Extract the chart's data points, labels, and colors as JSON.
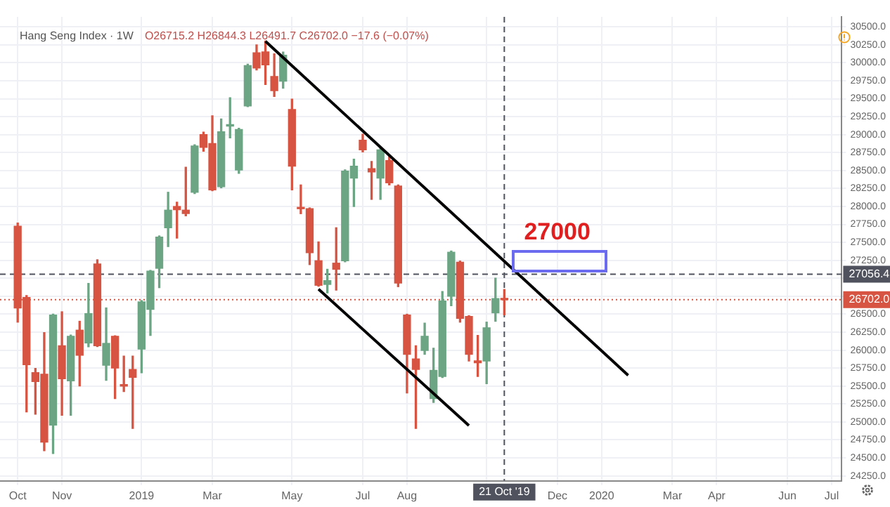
{
  "chart_data": {
    "type": "candlestick",
    "title": "Hang Seng Index · 1W",
    "subtitle": "O26715.2 H26844.3 L26491.7 C26702.0 −17.6 (−0.07%)",
    "series": [
      {
        "x": [
          "2018-10-01",
          "2018-10-08",
          "2018-10-15",
          "2018-10-22",
          "2018-10-29",
          "2018-11-05",
          "2018-11-12",
          "2018-11-19",
          "2018-11-26",
          "2018-12-03",
          "2018-12-10",
          "2018-12-17",
          "2018-12-24",
          "2018-12-31",
          "2019-01-07",
          "2019-01-14",
          "2019-01-21",
          "2019-01-28",
          "2019-02-04",
          "2019-02-11",
          "2019-02-18",
          "2019-02-25",
          "2019-03-04",
          "2019-03-11",
          "2019-03-18",
          "2019-03-25",
          "2019-04-01",
          "2019-04-08",
          "2019-04-15",
          "2019-04-22",
          "2019-04-29",
          "2019-05-06",
          "2019-05-13",
          "2019-05-20",
          "2019-05-27",
          "2019-06-03",
          "2019-06-10",
          "2019-06-17",
          "2019-06-24",
          "2019-07-01",
          "2019-07-08",
          "2019-07-15",
          "2019-07-22",
          "2019-07-29",
          "2019-08-05",
          "2019-08-12",
          "2019-08-19",
          "2019-08-26",
          "2019-09-02",
          "2019-09-09",
          "2019-09-16",
          "2019-09-23",
          "2019-09-30",
          "2019-10-07",
          "2019-10-14",
          "2019-10-21"
        ],
        "ohlc": [
          [
            27724,
            27770,
            26390,
            26588
          ],
          [
            26732,
            26760,
            25140,
            25798
          ],
          [
            25686,
            25745,
            25108,
            25562
          ],
          [
            25666,
            26244,
            24601,
            24719
          ],
          [
            24956,
            26500,
            24561,
            26489
          ],
          [
            26061,
            26534,
            25094,
            25601
          ],
          [
            25573,
            26210,
            25094,
            26193
          ],
          [
            26278,
            26402,
            25502,
            25929
          ],
          [
            26100,
            26929,
            26047,
            26509
          ],
          [
            27199,
            27258,
            26050,
            26061
          ],
          [
            25790,
            26588,
            25581,
            26094
          ],
          [
            26193,
            26200,
            25325,
            25751
          ],
          [
            25510,
            25917,
            25423,
            25500
          ],
          [
            25731,
            25917,
            24910,
            25621
          ],
          [
            26015,
            26690,
            25686,
            26672
          ],
          [
            26568,
            27110,
            26205,
            27100
          ],
          [
            27140,
            27590,
            26870,
            27574
          ],
          [
            27704,
            28198,
            27442,
            27949
          ],
          [
            28000,
            28060,
            27560,
            27955
          ],
          [
            27949,
            28547,
            27870,
            27902
          ],
          [
            28198,
            28860,
            28180,
            28843
          ],
          [
            29001,
            29034,
            28770,
            28823
          ],
          [
            28876,
            29263,
            28220,
            28231
          ],
          [
            28276,
            29218,
            28260,
            29040
          ],
          [
            29120,
            29513,
            28955,
            29133
          ],
          [
            28507,
            29090,
            28462,
            29073
          ],
          [
            29401,
            29980,
            29390,
            29961
          ],
          [
            30139,
            30249,
            29900,
            29928
          ],
          [
            30151,
            30303,
            29697,
            29973
          ],
          [
            29809,
            30125,
            29533,
            29612
          ],
          [
            29744,
            30150,
            29646,
            30105
          ],
          [
            29350,
            29494,
            28231,
            28561
          ],
          [
            27980,
            28300,
            27900,
            27969
          ],
          [
            27969,
            27980,
            27191,
            27357
          ],
          [
            27245,
            27507,
            26890,
            26903
          ],
          [
            26915,
            27126,
            26797,
            26968
          ],
          [
            27211,
            27704,
            26836,
            27126
          ],
          [
            27245,
            28510,
            27230,
            28493
          ],
          [
            28395,
            28659,
            28000,
            28561
          ],
          [
            28922,
            29006,
            28760,
            28789
          ],
          [
            28527,
            28626,
            28099,
            28482
          ],
          [
            28395,
            28810,
            28099,
            28789
          ],
          [
            28639,
            28691,
            28300,
            28330
          ],
          [
            28284,
            28300,
            26884,
            26935
          ],
          [
            26489,
            26500,
            25404,
            25942
          ],
          [
            25877,
            26061,
            24910,
            25731
          ],
          [
            25996,
            26376,
            25942,
            26193
          ],
          [
            25325,
            26027,
            25272,
            25719
          ],
          [
            25633,
            26816,
            25620,
            26685
          ],
          [
            26751,
            27380,
            26619,
            27363
          ],
          [
            27225,
            27240,
            26390,
            26442
          ],
          [
            26469,
            26480,
            25850,
            25942
          ],
          [
            25850,
            26205,
            25633,
            25824
          ],
          [
            25850,
            26390,
            25534,
            26311
          ],
          [
            26520,
            27002,
            26402,
            26718
          ],
          [
            26715.2,
            26844.3,
            26491.7,
            26702.0
          ]
        ],
        "colors": [
          "#d75442",
          "#d75442",
          "#d75442",
          "#d75442",
          "#6ba583",
          "#d75442",
          "#6ba583",
          "#d75442",
          "#6ba583",
          "#d75442",
          "#6ba583",
          "#d75442",
          "#d75442",
          "#d75442",
          "#6ba583",
          "#6ba583",
          "#6ba583",
          "#6ba583",
          "#d75442",
          "#d75442",
          "#6ba583",
          "#d75442",
          "#d75442",
          "#6ba583",
          "#6ba583",
          "#6ba583",
          "#6ba583",
          "#d75442",
          "#d75442",
          "#d75442",
          "#6ba583",
          "#d75442",
          "#d75442",
          "#d75442",
          "#d75442",
          "#6ba583",
          "#d75442",
          "#6ba583",
          "#6ba583",
          "#d75442",
          "#d75442",
          "#6ba583",
          "#d75442",
          "#d75442",
          "#d75442",
          "#d75442",
          "#6ba583",
          "#6ba583",
          "#6ba583",
          "#6ba583",
          "#d75442",
          "#d75442",
          "#d75442",
          "#6ba583",
          "#6ba583",
          "#d75442"
        ]
      },
      {
        "type": "line",
        "color": "#000000",
        "x": [
          "2019-04-15",
          "2020-01-27"
        ],
        "values": [
          30300,
          25650
        ]
      },
      {
        "type": "line",
        "color": "#000000",
        "x": [
          "2019-05-27",
          "2019-09-23"
        ],
        "values": [
          26850,
          24950
        ]
      }
    ],
    "xlim": [
      "2018-09-17",
      "2020-07-14"
    ],
    "xticks": [
      {
        "value": "2018-10-01",
        "label": "Oct"
      },
      {
        "value": "2018-11-05",
        "label": "Nov"
      },
      {
        "value": "2019-01-07",
        "label": "2019"
      },
      {
        "value": "2019-03-04",
        "label": "Mar"
      },
      {
        "value": "2019-05-06",
        "label": "May"
      },
      {
        "value": "2019-07-01",
        "label": "Jul"
      },
      {
        "value": "2019-08-05",
        "label": "Aug"
      },
      {
        "value": "2019-10-07",
        "label": null
      },
      {
        "value": "2019-12-02",
        "label": "Dec"
      },
      {
        "value": "2020-01-06",
        "label": "2020"
      },
      {
        "value": "2020-03-02",
        "label": "Mar"
      },
      {
        "value": "2020-04-06",
        "label": "Apr"
      },
      {
        "value": "2020-06-01",
        "label": "Jun"
      },
      {
        "value": "2020-07-06",
        "label": "Jul"
      }
    ],
    "ylim": [
      24180,
      30640
    ],
    "yticks": [
      {
        "value": 24250,
        "label": "24250.0"
      },
      {
        "value": 24500,
        "label": "24500.0"
      },
      {
        "value": 24750,
        "label": "24750.0"
      },
      {
        "value": 25000,
        "label": "25000.0"
      },
      {
        "value": 25250,
        "label": "25250.0"
      },
      {
        "value": 25500,
        "label": "25500.0"
      },
      {
        "value": 25750,
        "label": "25750.0"
      },
      {
        "value": 26000,
        "label": "26000.0"
      },
      {
        "value": 26250,
        "label": "26250.0"
      },
      {
        "value": 26500,
        "label": "26500.0"
      },
      {
        "value": 26750,
        "label": null
      },
      {
        "value": 27000,
        "label": null
      },
      {
        "value": 27250,
        "label": "27250.0"
      },
      {
        "value": 27500,
        "label": "27500.0"
      },
      {
        "value": 27750,
        "label": "27750.0"
      },
      {
        "value": 28000,
        "label": "28000.0"
      },
      {
        "value": 28250,
        "label": "28250.0"
      },
      {
        "value": 28500,
        "label": "28500.0"
      },
      {
        "value": 28750,
        "label": "28750.0"
      },
      {
        "value": 29000,
        "label": "29000.0"
      },
      {
        "value": 29250,
        "label": "29250.0"
      },
      {
        "value": 29500,
        "label": "29500.0"
      },
      {
        "value": 29750,
        "label": "29750.0"
      },
      {
        "value": 30000,
        "label": "30000.0"
      },
      {
        "value": 30250,
        "label": "30250.0"
      },
      {
        "value": 30500,
        "label": "30500.0"
      }
    ],
    "ref_lines": [
      {
        "axis": "y",
        "value": 26702.0,
        "label": "26702.0",
        "color": "#d75442",
        "line_style": "dotted"
      },
      {
        "axis": "y",
        "value": 27056.4,
        "label": "27056.4",
        "color": "#50535e",
        "line_style": "dashed"
      },
      {
        "axis": "x",
        "value": "2019-10-21",
        "label": "21 Oct '19",
        "color": "#50535e",
        "line_style": "dashed"
      }
    ],
    "annotations": [
      "27000"
    ],
    "grid": true,
    "legend": false
  }
}
